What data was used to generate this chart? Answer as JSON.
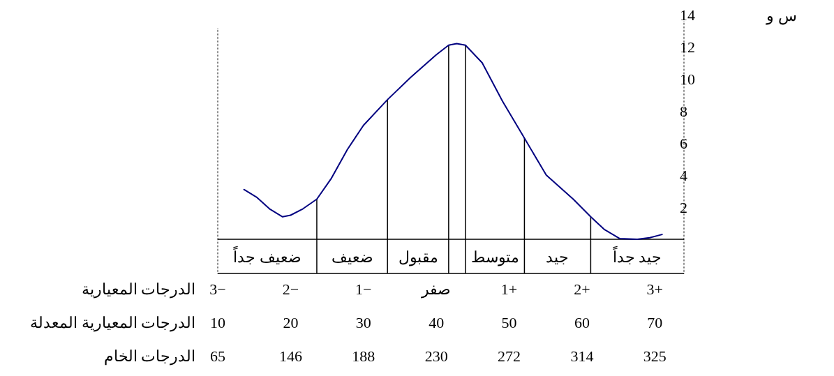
{
  "chart_data": {
    "type": "line",
    "ylabel": "س و",
    "xlabel": "الدرجات المعيارية\nالدرجات المعيارية المعدلة\nالدرجات الخام",
    "x": [
      13.6,
      15.4,
      17.1,
      18.9,
      20,
      21.7,
      23.6,
      25.6,
      27.8,
      30,
      33.3,
      36.5,
      40,
      41.7,
      42.8,
      44,
      46.3,
      49.1,
      52.1,
      55.1,
      58.8,
      61.2,
      63.1,
      65.2,
      67.6,
      69.3,
      71
    ],
    "series": [
      {
        "color": "#000080",
        "values": [
          3.1,
          2.6,
          1.9,
          1.4,
          1.5,
          1.9,
          2.5,
          3.8,
          5.6,
          7.1,
          8.7,
          10.1,
          11.5,
          12.1,
          12.2,
          12.1,
          11,
          8.6,
          6.3,
          4,
          2.5,
          1.4,
          0.6,
          0.04,
          0,
          0.1,
          0.3
        ]
      }
    ],
    "xlim": [
      10,
      74
    ],
    "ylim": [
      0,
      14
    ],
    "xticks": [
      10,
      20,
      30,
      40,
      50,
      60,
      70
    ],
    "annotations": [
      "ضعيف جداً",
      "ضعيف",
      "مقبول",
      "متوسط",
      "جيد",
      "جيد جداً",
      "3−",
      "2−",
      "1−",
      "صفر",
      "1+",
      "2+",
      "3+",
      "65",
      "146",
      "188",
      "230",
      "272",
      "314",
      "325"
    ],
    "yticks": [
      2,
      4,
      6,
      8,
      10,
      12,
      14
    ],
    "ref_lines": [
      {
        "axis": "x",
        "value": 23.6
      },
      {
        "axis": "x",
        "value": 33.3
      },
      {
        "axis": "x",
        "value": 41.7
      },
      {
        "axis": "x",
        "value": 44
      },
      {
        "axis": "x",
        "value": 52.1
      },
      {
        "axis": "x",
        "value": 61.2
      }
    ],
    "grid": false
  }
}
